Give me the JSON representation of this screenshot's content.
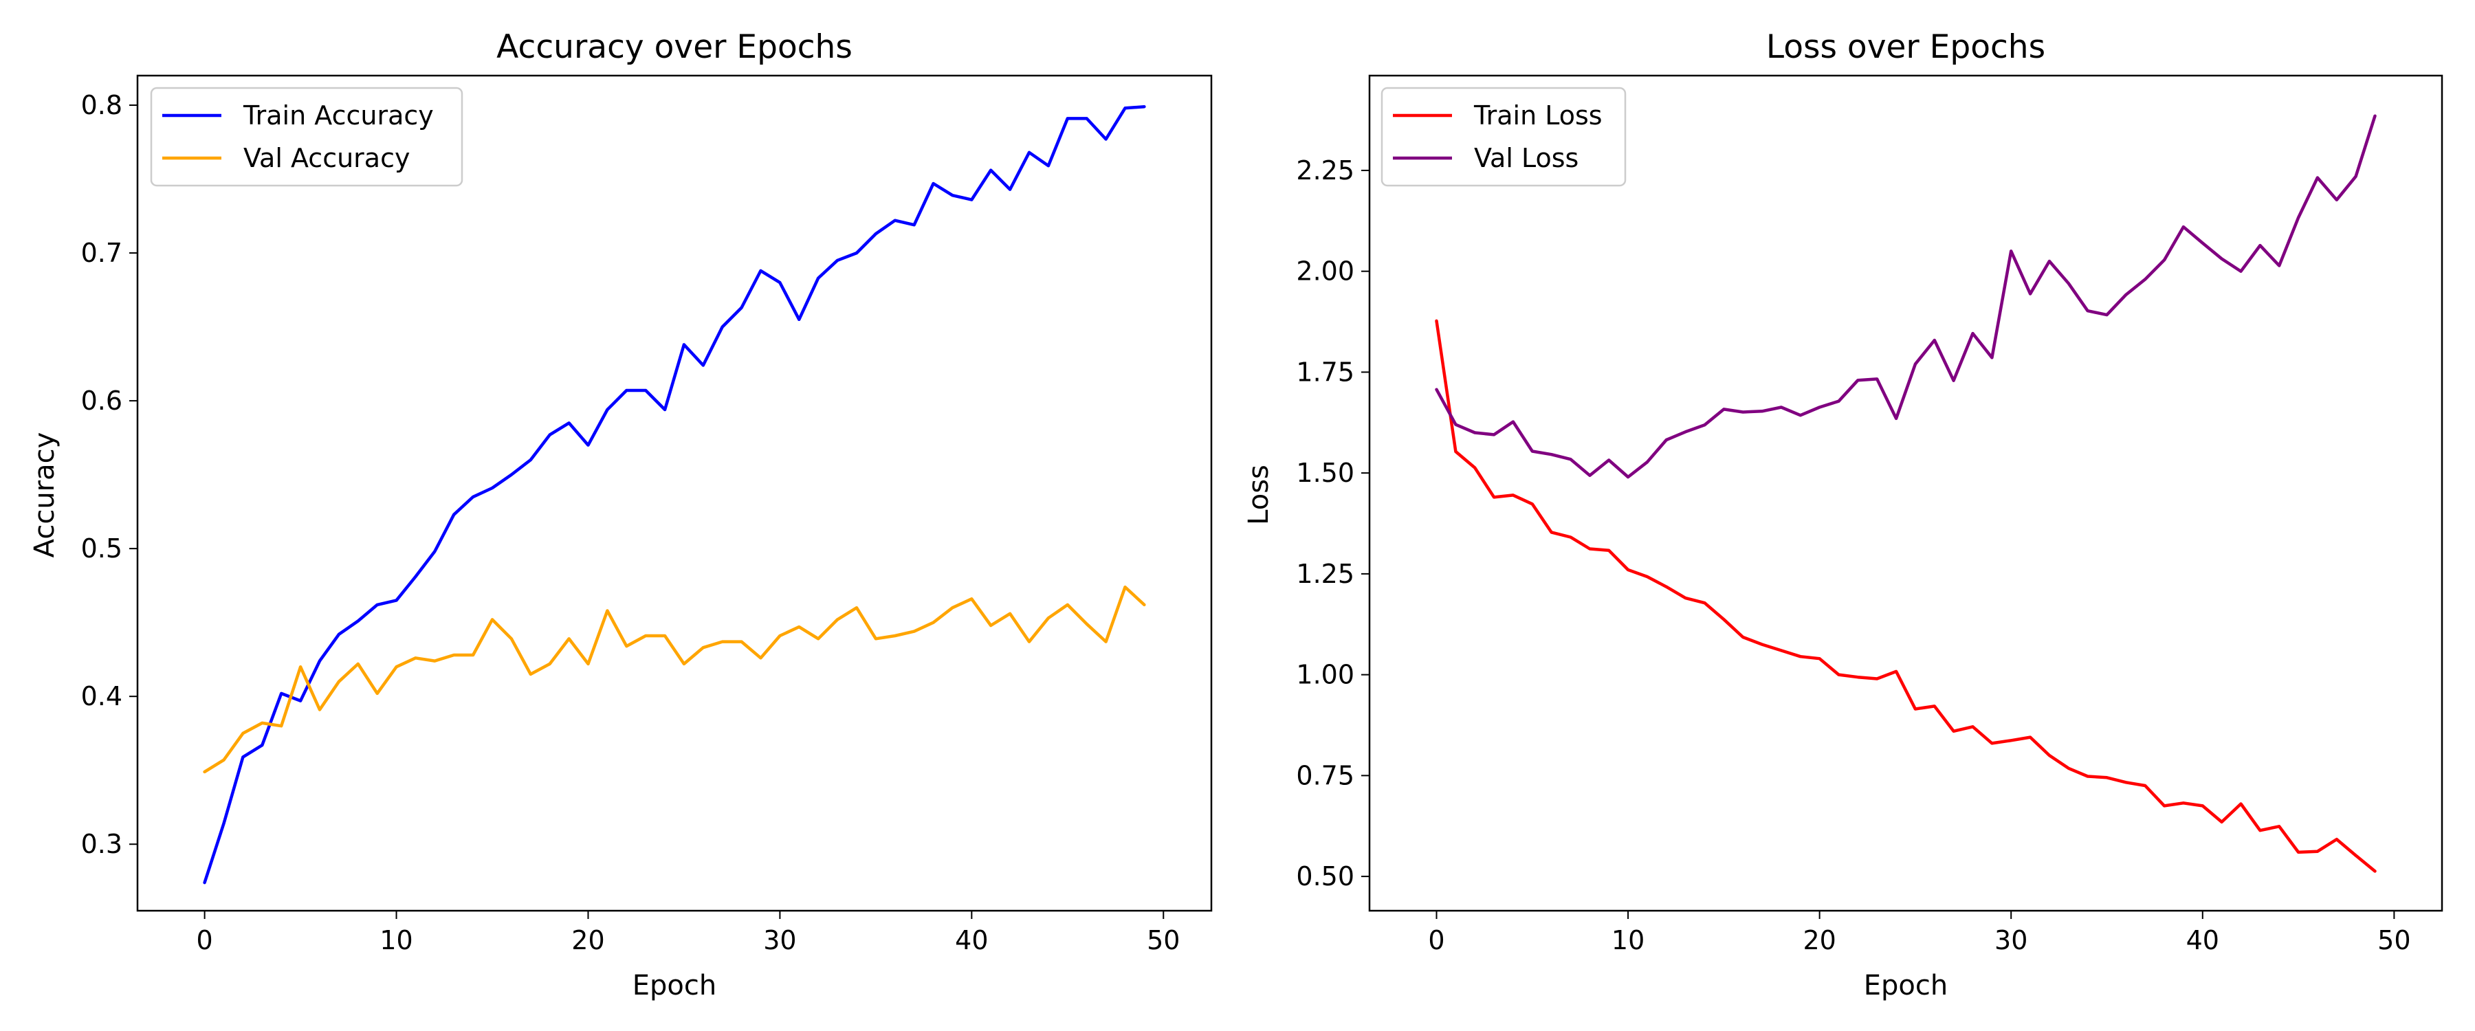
{
  "figure": {
    "background": "#ffffff"
  },
  "chart_data": [
    {
      "type": "line",
      "title": "Accuracy over Epochs",
      "xlabel": "Epoch",
      "ylabel": "Accuracy",
      "xlim": [
        -3.5,
        52.5
      ],
      "ylim": [
        0.255,
        0.82
      ],
      "xticks": [
        0,
        10,
        20,
        30,
        40,
        50
      ],
      "yticks": [
        0.3,
        0.4,
        0.5,
        0.6,
        0.7,
        0.8
      ],
      "ytick_labels": [
        "0.3",
        "0.4",
        "0.5",
        "0.6",
        "0.7",
        "0.8"
      ],
      "grid": false,
      "legend_position": "upper-left",
      "x": [
        0,
        1,
        2,
        3,
        4,
        5,
        6,
        7,
        8,
        9,
        10,
        11,
        12,
        13,
        14,
        15,
        16,
        17,
        18,
        19,
        20,
        21,
        22,
        23,
        24,
        25,
        26,
        27,
        28,
        29,
        30,
        31,
        32,
        33,
        34,
        35,
        36,
        37,
        38,
        39,
        40,
        41,
        42,
        43,
        44,
        45,
        46,
        47,
        48,
        49
      ],
      "series": [
        {
          "name": "Train Accuracy",
          "color": "#0000ff",
          "values": [
            0.274,
            0.314,
            0.359,
            0.367,
            0.402,
            0.397,
            0.424,
            0.442,
            0.451,
            0.462,
            0.465,
            0.481,
            0.498,
            0.523,
            0.535,
            0.541,
            0.55,
            0.56,
            0.577,
            0.585,
            0.57,
            0.594,
            0.607,
            0.607,
            0.594,
            0.638,
            0.624,
            0.65,
            0.663,
            0.688,
            0.68,
            0.655,
            0.683,
            0.695,
            0.7,
            0.713,
            0.722,
            0.719,
            0.747,
            0.739,
            0.736,
            0.756,
            0.743,
            0.768,
            0.759,
            0.791,
            0.791,
            0.777,
            0.798,
            0.799
          ]
        },
        {
          "name": "Val Accuracy",
          "color": "#ffa500",
          "values": [
            0.349,
            0.357,
            0.375,
            0.382,
            0.38,
            0.42,
            0.391,
            0.41,
            0.422,
            0.402,
            0.42,
            0.426,
            0.424,
            0.428,
            0.428,
            0.452,
            0.439,
            0.415,
            0.422,
            0.439,
            0.422,
            0.458,
            0.434,
            0.441,
            0.441,
            0.422,
            0.433,
            0.437,
            0.437,
            0.426,
            0.441,
            0.447,
            0.439,
            0.452,
            0.46,
            0.439,
            0.441,
            0.444,
            0.45,
            0.46,
            0.466,
            0.448,
            0.456,
            0.437,
            0.453,
            0.462,
            0.449,
            0.437,
            0.474,
            0.462
          ]
        }
      ]
    },
    {
      "type": "line",
      "title": "Loss over Epochs",
      "xlabel": "Epoch",
      "ylabel": "Loss",
      "xlim": [
        -3.5,
        52.5
      ],
      "ylim": [
        0.415,
        2.485
      ],
      "xticks": [
        0,
        10,
        20,
        30,
        40,
        50
      ],
      "yticks": [
        0.5,
        0.75,
        1.0,
        1.25,
        1.5,
        1.75,
        2.0,
        2.25
      ],
      "ytick_labels": [
        "0.50",
        "0.75",
        "1.00",
        "1.25",
        "1.50",
        "1.75",
        "2.00",
        "2.25"
      ],
      "grid": false,
      "legend_position": "upper-left",
      "x": [
        0,
        1,
        2,
        3,
        4,
        5,
        6,
        7,
        8,
        9,
        10,
        11,
        12,
        13,
        14,
        15,
        16,
        17,
        18,
        19,
        20,
        21,
        22,
        23,
        24,
        25,
        26,
        27,
        28,
        29,
        30,
        31,
        32,
        33,
        34,
        35,
        36,
        37,
        38,
        39,
        40,
        41,
        42,
        43,
        44,
        45,
        46,
        47,
        48,
        49
      ],
      "series": [
        {
          "name": "Train Loss",
          "color": "#ff0000",
          "values": [
            1.877,
            1.553,
            1.513,
            1.44,
            1.445,
            1.423,
            1.353,
            1.341,
            1.312,
            1.308,
            1.26,
            1.243,
            1.218,
            1.19,
            1.178,
            1.137,
            1.093,
            1.075,
            1.06,
            1.045,
            1.04,
            1.0,
            0.994,
            0.99,
            1.008,
            0.915,
            0.922,
            0.86,
            0.871,
            0.83,
            0.837,
            0.845,
            0.8,
            0.768,
            0.748,
            0.745,
            0.733,
            0.725,
            0.675,
            0.682,
            0.675,
            0.635,
            0.68,
            0.614,
            0.624,
            0.56,
            0.562,
            0.592,
            0.552,
            0.513
          ]
        },
        {
          "name": "Val Loss",
          "color": "#800080",
          "values": [
            1.707,
            1.62,
            1.6,
            1.595,
            1.627,
            1.554,
            1.546,
            1.534,
            1.494,
            1.532,
            1.49,
            1.527,
            1.582,
            1.602,
            1.619,
            1.658,
            1.651,
            1.653,
            1.663,
            1.643,
            1.663,
            1.678,
            1.73,
            1.733,
            1.635,
            1.77,
            1.829,
            1.729,
            1.846,
            1.786,
            2.05,
            1.944,
            2.025,
            1.97,
            1.902,
            1.892,
            1.942,
            1.98,
            2.028,
            2.11,
            2.07,
            2.031,
            2.0,
            2.064,
            2.014,
            2.133,
            2.232,
            2.177,
            2.235,
            2.385
          ]
        }
      ]
    }
  ]
}
